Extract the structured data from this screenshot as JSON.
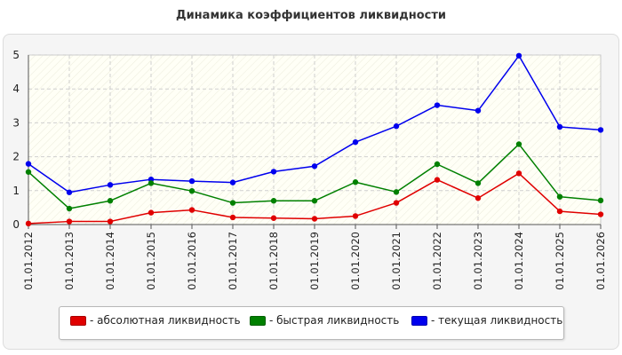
{
  "chart_data": {
    "type": "line",
    "title": "Динамика коэффициентов ликвидности",
    "x": [
      "01.01.2012",
      "01.01.2013",
      "01.01.2014",
      "01.01.2015",
      "01.01.2016",
      "01.01.2017",
      "01.01.2018",
      "01.01.2019",
      "01.01.2020",
      "01.01.2021",
      "01.01.2022",
      "01.01.2023",
      "01.01.2024",
      "01.01.2025",
      "01.01.2026"
    ],
    "ylim": [
      0,
      5
    ],
    "yticks": [
      "0",
      "1",
      "2",
      "3",
      "4",
      "5"
    ],
    "grid": true,
    "legend_position": "bottom",
    "series": [
      {
        "name": "- абсолютная ликвидность",
        "color": "#e00000",
        "values": [
          0.03,
          0.09,
          0.09,
          0.35,
          0.43,
          0.21,
          0.19,
          0.17,
          0.25,
          0.64,
          1.32,
          0.78,
          1.51,
          0.39,
          0.3
        ]
      },
      {
        "name": "- быстрая ликвидность",
        "color": "#008000",
        "values": [
          1.55,
          0.47,
          0.7,
          1.22,
          0.99,
          0.64,
          0.7,
          0.7,
          1.25,
          0.96,
          1.78,
          1.22,
          2.37,
          0.82,
          0.71
        ]
      },
      {
        "name": "- текущая ликвидность",
        "color": "#0000ee",
        "values": [
          1.79,
          0.95,
          1.17,
          1.33,
          1.28,
          1.24,
          1.56,
          1.72,
          2.43,
          2.9,
          3.52,
          3.36,
          4.98,
          2.88,
          2.79
        ]
      }
    ]
  }
}
